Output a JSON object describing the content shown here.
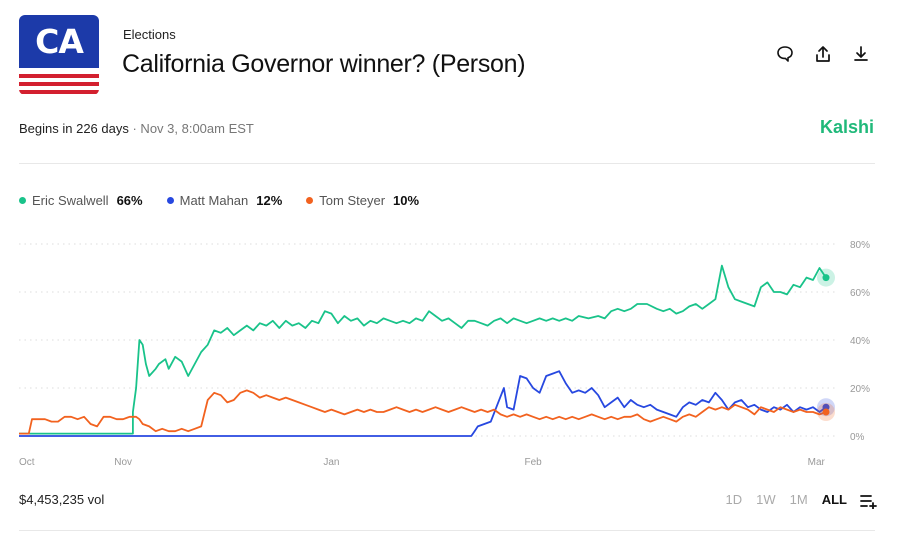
{
  "header": {
    "logo_text": "CA",
    "category": "Elections",
    "title": "California Governor winner? (Person)",
    "begins": "Begins in 226 days",
    "begins_detail": "· Nov 3, 8:00am EST",
    "brand": "Kalshi"
  },
  "actions": [
    {
      "name": "comment-icon"
    },
    {
      "name": "share-icon"
    },
    {
      "name": "download-icon"
    }
  ],
  "legend": [
    {
      "name": "Eric Swalwell",
      "pct": "66%",
      "color": "#19c38a"
    },
    {
      "name": "Matt Mahan",
      "pct": "12%",
      "color": "#2748e0"
    },
    {
      "name": "Tom Steyer",
      "pct": "10%",
      "color": "#f2621f"
    }
  ],
  "footer": {
    "volume": "$4,453,235 vol",
    "ranges": [
      "1D",
      "1W",
      "1M",
      "ALL"
    ],
    "active_range": "ALL"
  },
  "chart_data": {
    "type": "line",
    "x_ticks": [
      "Oct",
      "Nov",
      "Jan",
      "Feb",
      "Mar"
    ],
    "x_tick_days": [
      0,
      32,
      96,
      158,
      245
    ],
    "x_range": [
      0,
      248
    ],
    "y_ticks": [
      "80%",
      "60%",
      "40%",
      "20%",
      "0%"
    ],
    "ylim": [
      0,
      80
    ],
    "grid": true,
    "series": [
      {
        "name": "Eric Swalwell",
        "color": "#19c38a",
        "points": [
          [
            0,
            1
          ],
          [
            35,
            1
          ],
          [
            35,
            10
          ],
          [
            36,
            20
          ],
          [
            37,
            40
          ],
          [
            38,
            38
          ],
          [
            39,
            30
          ],
          [
            40,
            25
          ],
          [
            42,
            28
          ],
          [
            43,
            30
          ],
          [
            45,
            32
          ],
          [
            46,
            28
          ],
          [
            48,
            33
          ],
          [
            50,
            31
          ],
          [
            52,
            25
          ],
          [
            54,
            30
          ],
          [
            56,
            35
          ],
          [
            58,
            38
          ],
          [
            60,
            44
          ],
          [
            62,
            43
          ],
          [
            64,
            45
          ],
          [
            66,
            42
          ],
          [
            68,
            44
          ],
          [
            70,
            46
          ],
          [
            72,
            44
          ],
          [
            74,
            47
          ],
          [
            76,
            46
          ],
          [
            78,
            48
          ],
          [
            80,
            45
          ],
          [
            82,
            48
          ],
          [
            84,
            46
          ],
          [
            86,
            47
          ],
          [
            88,
            45
          ],
          [
            90,
            48
          ],
          [
            92,
            47
          ],
          [
            94,
            52
          ],
          [
            96,
            51
          ],
          [
            98,
            47
          ],
          [
            100,
            50
          ],
          [
            102,
            48
          ],
          [
            104,
            49
          ],
          [
            106,
            46
          ],
          [
            108,
            48
          ],
          [
            110,
            47
          ],
          [
            112,
            49
          ],
          [
            114,
            48
          ],
          [
            116,
            47
          ],
          [
            118,
            48
          ],
          [
            120,
            47
          ],
          [
            122,
            49
          ],
          [
            124,
            48
          ],
          [
            126,
            52
          ],
          [
            128,
            50
          ],
          [
            130,
            48
          ],
          [
            132,
            49
          ],
          [
            134,
            47
          ],
          [
            136,
            45
          ],
          [
            138,
            48
          ],
          [
            140,
            48
          ],
          [
            142,
            47
          ],
          [
            144,
            46
          ],
          [
            146,
            48
          ],
          [
            148,
            49
          ],
          [
            150,
            47
          ],
          [
            152,
            49
          ],
          [
            154,
            48
          ],
          [
            156,
            47
          ],
          [
            158,
            48
          ],
          [
            160,
            49
          ],
          [
            162,
            48
          ],
          [
            164,
            49
          ],
          [
            166,
            48
          ],
          [
            168,
            49
          ],
          [
            170,
            48
          ],
          [
            172,
            50
          ],
          [
            175,
            49
          ],
          [
            178,
            50
          ],
          [
            180,
            49
          ],
          [
            182,
            52
          ],
          [
            184,
            53
          ],
          [
            186,
            52
          ],
          [
            188,
            53
          ],
          [
            190,
            55
          ],
          [
            193,
            55
          ],
          [
            196,
            53
          ],
          [
            198,
            52
          ],
          [
            200,
            53
          ],
          [
            202,
            51
          ],
          [
            204,
            52
          ],
          [
            206,
            54
          ],
          [
            208,
            55
          ],
          [
            210,
            53
          ],
          [
            212,
            55
          ],
          [
            214,
            57
          ],
          [
            216,
            71
          ],
          [
            218,
            62
          ],
          [
            220,
            57
          ],
          [
            222,
            56
          ],
          [
            224,
            55
          ],
          [
            226,
            54
          ],
          [
            228,
            62
          ],
          [
            230,
            64
          ],
          [
            232,
            60
          ],
          [
            234,
            60
          ],
          [
            236,
            59
          ],
          [
            238,
            63
          ],
          [
            240,
            62
          ],
          [
            242,
            66
          ],
          [
            244,
            65
          ],
          [
            246,
            70
          ],
          [
            248,
            66
          ]
        ]
      },
      {
        "name": "Matt Mahan",
        "color": "#2748e0",
        "points": [
          [
            0,
            0
          ],
          [
            139,
            0
          ],
          [
            140,
            2
          ],
          [
            141,
            4
          ],
          [
            143,
            5
          ],
          [
            145,
            6
          ],
          [
            147,
            13
          ],
          [
            149,
            20
          ],
          [
            150,
            12
          ],
          [
            152,
            11
          ],
          [
            154,
            25
          ],
          [
            156,
            24
          ],
          [
            158,
            20
          ],
          [
            160,
            18
          ],
          [
            162,
            25
          ],
          [
            164,
            26
          ],
          [
            166,
            27
          ],
          [
            168,
            22
          ],
          [
            170,
            18
          ],
          [
            172,
            19
          ],
          [
            174,
            18
          ],
          [
            176,
            20
          ],
          [
            178,
            17
          ],
          [
            180,
            12
          ],
          [
            182,
            14
          ],
          [
            184,
            16
          ],
          [
            186,
            12
          ],
          [
            188,
            15
          ],
          [
            190,
            13
          ],
          [
            192,
            12
          ],
          [
            194,
            13
          ],
          [
            196,
            11
          ],
          [
            198,
            10
          ],
          [
            200,
            9
          ],
          [
            202,
            8
          ],
          [
            204,
            12
          ],
          [
            206,
            14
          ],
          [
            208,
            13
          ],
          [
            210,
            15
          ],
          [
            212,
            14
          ],
          [
            214,
            18
          ],
          [
            216,
            15
          ],
          [
            218,
            11
          ],
          [
            220,
            14
          ],
          [
            222,
            15
          ],
          [
            224,
            12
          ],
          [
            226,
            13
          ],
          [
            228,
            11
          ],
          [
            230,
            10
          ],
          [
            232,
            12
          ],
          [
            234,
            11
          ],
          [
            236,
            13
          ],
          [
            238,
            10
          ],
          [
            240,
            12
          ],
          [
            242,
            11
          ],
          [
            244,
            12
          ],
          [
            246,
            10
          ],
          [
            248,
            12
          ]
        ]
      },
      {
        "name": "Tom Steyer",
        "color": "#f2621f",
        "points": [
          [
            0,
            1
          ],
          [
            3,
            1
          ],
          [
            4,
            7
          ],
          [
            6,
            7
          ],
          [
            8,
            7
          ],
          [
            10,
            6
          ],
          [
            12,
            6
          ],
          [
            14,
            8
          ],
          [
            16,
            8
          ],
          [
            18,
            7
          ],
          [
            20,
            8
          ],
          [
            22,
            5
          ],
          [
            24,
            4
          ],
          [
            26,
            8
          ],
          [
            28,
            8
          ],
          [
            30,
            7
          ],
          [
            32,
            7
          ],
          [
            34,
            8
          ],
          [
            36,
            8
          ],
          [
            37,
            7
          ],
          [
            38,
            5
          ],
          [
            40,
            4
          ],
          [
            42,
            2
          ],
          [
            44,
            3
          ],
          [
            46,
            2
          ],
          [
            48,
            2
          ],
          [
            50,
            3
          ],
          [
            52,
            2
          ],
          [
            54,
            3
          ],
          [
            56,
            4
          ],
          [
            58,
            15
          ],
          [
            60,
            18
          ],
          [
            62,
            17
          ],
          [
            64,
            14
          ],
          [
            66,
            15
          ],
          [
            68,
            18
          ],
          [
            70,
            19
          ],
          [
            72,
            18
          ],
          [
            74,
            16
          ],
          [
            76,
            17
          ],
          [
            78,
            16
          ],
          [
            80,
            15
          ],
          [
            82,
            16
          ],
          [
            84,
            15
          ],
          [
            86,
            14
          ],
          [
            88,
            13
          ],
          [
            90,
            12
          ],
          [
            92,
            11
          ],
          [
            94,
            10
          ],
          [
            96,
            11
          ],
          [
            98,
            10
          ],
          [
            100,
            9
          ],
          [
            102,
            10
          ],
          [
            104,
            11
          ],
          [
            106,
            10
          ],
          [
            108,
            11
          ],
          [
            110,
            10
          ],
          [
            112,
            10
          ],
          [
            114,
            11
          ],
          [
            116,
            12
          ],
          [
            118,
            11
          ],
          [
            120,
            10
          ],
          [
            122,
            11
          ],
          [
            124,
            10
          ],
          [
            126,
            11
          ],
          [
            128,
            12
          ],
          [
            130,
            11
          ],
          [
            132,
            10
          ],
          [
            134,
            11
          ],
          [
            136,
            12
          ],
          [
            138,
            11
          ],
          [
            140,
            10
          ],
          [
            142,
            11
          ],
          [
            144,
            10
          ],
          [
            146,
            11
          ],
          [
            148,
            9
          ],
          [
            150,
            8
          ],
          [
            152,
            9
          ],
          [
            154,
            8
          ],
          [
            156,
            9
          ],
          [
            158,
            8
          ],
          [
            160,
            7
          ],
          [
            162,
            8
          ],
          [
            164,
            7
          ],
          [
            166,
            8
          ],
          [
            168,
            7
          ],
          [
            170,
            8
          ],
          [
            172,
            7
          ],
          [
            174,
            8
          ],
          [
            176,
            9
          ],
          [
            178,
            8
          ],
          [
            180,
            7
          ],
          [
            182,
            8
          ],
          [
            184,
            7
          ],
          [
            186,
            8
          ],
          [
            188,
            8
          ],
          [
            190,
            9
          ],
          [
            192,
            7
          ],
          [
            194,
            6
          ],
          [
            196,
            7
          ],
          [
            198,
            8
          ],
          [
            200,
            7
          ],
          [
            202,
            6
          ],
          [
            204,
            8
          ],
          [
            206,
            9
          ],
          [
            208,
            8
          ],
          [
            210,
            10
          ],
          [
            212,
            12
          ],
          [
            214,
            11
          ],
          [
            216,
            12
          ],
          [
            218,
            11
          ],
          [
            220,
            13
          ],
          [
            222,
            12
          ],
          [
            224,
            11
          ],
          [
            226,
            9
          ],
          [
            228,
            12
          ],
          [
            230,
            11
          ],
          [
            232,
            10
          ],
          [
            234,
            12
          ],
          [
            236,
            11
          ],
          [
            238,
            10
          ],
          [
            240,
            11
          ],
          [
            242,
            10
          ],
          [
            244,
            10
          ],
          [
            246,
            9
          ],
          [
            248,
            10
          ]
        ]
      }
    ]
  }
}
